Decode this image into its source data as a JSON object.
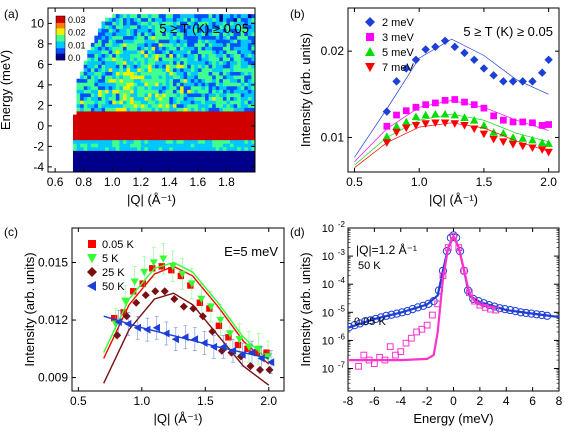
{
  "chart_data": [
    {
      "panel": "(a)",
      "type": "heatmap",
      "xlabel": "|Q| (Å⁻¹)",
      "ylabel": "Energy (meV)",
      "xlim": [
        0.55,
        2.0
      ],
      "ylim": [
        -4.5,
        11.5
      ],
      "xticks": [
        "0.6",
        "0.8",
        "1.0",
        "1.2",
        "1.4",
        "1.6",
        "1.8"
      ],
      "yticks": [
        "-4",
        "-2",
        "0",
        "2",
        "4",
        "6",
        "8",
        "10"
      ],
      "annotation": "5 ≥ T (K) ≥ 0.05",
      "colorbar": {
        "ticks": [
          "0.03",
          "0.02",
          "0.01",
          "0.0"
        ],
        "range": [
          0,
          0.035
        ],
        "colors": [
          "#00008b",
          "#0050ff",
          "#00c8ff",
          "#40ff90",
          "#f0f000",
          "#ff8000",
          "#d00000",
          "#8b0000"
        ]
      },
      "elastic_band_E": [
        -1.5,
        1.5
      ],
      "q_min_edge": [
        [
          -4,
          0.72
        ],
        [
          0,
          0.72
        ],
        [
          4,
          0.74
        ],
        [
          8,
          0.85
        ],
        [
          10,
          0.93
        ],
        [
          10.8,
          1.0
        ]
      ]
    },
    {
      "panel": "(b)",
      "type": "scatter",
      "xlabel": "|Q| (Å⁻¹)",
      "ylabel": "Intensity (arb. units)",
      "xlim": [
        0.45,
        2.08
      ],
      "ylim": [
        0.006,
        0.025
      ],
      "xticks": [
        "0.5",
        "1.0",
        "1.5",
        "2.0"
      ],
      "yticks": [
        "0.01",
        "0.02"
      ],
      "annotation": "5 ≥ T (K) ≥ 0.05",
      "x": [
        0.75,
        0.825,
        0.9,
        0.975,
        1.05,
        1.125,
        1.2,
        1.275,
        1.35,
        1.425,
        1.5,
        1.575,
        1.65,
        1.725,
        1.8,
        1.875,
        1.95,
        2.0
      ],
      "series": [
        {
          "name": "2 meV",
          "color": "#1c3fd6",
          "marker": "diamond",
          "values": [
            0.013,
            0.0165,
            0.018,
            0.019,
            0.0202,
            0.0205,
            0.0212,
            0.0205,
            0.0198,
            0.019,
            0.018,
            0.0172,
            0.0165,
            0.0165,
            0.0165,
            0.0165,
            0.0175,
            0.019
          ],
          "fit": [
            [
              0.5,
              0.0077
            ],
            [
              0.75,
              0.0133
            ],
            [
              1.0,
              0.0192
            ],
            [
              1.25,
              0.0214
            ],
            [
              1.5,
              0.0195
            ],
            [
              1.75,
              0.0167
            ],
            [
              2.0,
              0.015
            ]
          ]
        },
        {
          "name": "3 meV",
          "color": "#ff00ff",
          "marker": "square",
          "values": [
            0.0113,
            0.0126,
            0.0131,
            0.0135,
            0.0138,
            0.014,
            0.0143,
            0.0144,
            0.0141,
            0.0138,
            0.0134,
            0.0125,
            0.012,
            0.0118,
            0.0118,
            0.0117,
            0.0114,
            0.0115
          ],
          "fit": [
            [
              0.5,
              0.0072
            ],
            [
              0.75,
              0.011
            ],
            [
              1.0,
              0.0135
            ],
            [
              1.25,
              0.0143
            ],
            [
              1.5,
              0.0135
            ],
            [
              1.75,
              0.012
            ],
            [
              2.0,
              0.0108
            ]
          ]
        },
        {
          "name": "5 meV",
          "color": "#00dd00",
          "marker": "triangle-up",
          "values": [
            0.0101,
            0.0113,
            0.0118,
            0.0124,
            0.0126,
            0.0127,
            0.0127,
            0.0126,
            0.0123,
            0.012,
            0.0114,
            0.0106,
            0.0105,
            0.01,
            0.0099,
            0.0097,
            0.0094,
            0.0093
          ],
          "fit": [
            [
              0.5,
              0.0068
            ],
            [
              0.75,
              0.01
            ],
            [
              1.0,
              0.012
            ],
            [
              1.25,
              0.0127
            ],
            [
              1.5,
              0.012
            ],
            [
              1.75,
              0.0105
            ],
            [
              2.0,
              0.0095
            ]
          ]
        },
        {
          "name": "7 meV",
          "color": "#ff0000",
          "marker": "triangle-down",
          "values": [
            0.0094,
            0.0106,
            0.0111,
            0.0114,
            0.0116,
            0.0117,
            0.0117,
            0.0116,
            0.0114,
            0.011,
            0.0104,
            0.0098,
            0.0095,
            0.0092,
            0.009,
            0.0088,
            0.0086,
            0.0083
          ],
          "fit": [
            [
              0.5,
              0.0065
            ],
            [
              0.75,
              0.0094
            ],
            [
              1.0,
              0.0112
            ],
            [
              1.25,
              0.0117
            ],
            [
              1.5,
              0.0111
            ],
            [
              1.75,
              0.0096
            ],
            [
              2.0,
              0.0084
            ]
          ]
        }
      ]
    },
    {
      "panel": "(c)",
      "type": "scatter",
      "xlabel": "|Q| (Å⁻¹)",
      "ylabel": "Intensity (arb. units)",
      "xlim": [
        0.45,
        2.12
      ],
      "ylim": [
        0.0083,
        0.0168
      ],
      "xticks": [
        "0.5",
        "1.0",
        "1.5",
        "2.0"
      ],
      "yticks": [
        "0.009",
        "0.012",
        "0.015"
      ],
      "annotation": "E=5 meV",
      "x": [
        0.8,
        0.875,
        0.95,
        1.025,
        1.1,
        1.175,
        1.25,
        1.325,
        1.4,
        1.475,
        1.55,
        1.625,
        1.7,
        1.775,
        1.85,
        1.925,
        2.0
      ],
      "series": [
        {
          "name": "0.05 K",
          "color": "#ff0000",
          "marker": "square",
          "values": [
            0.0121,
            0.0124,
            0.0135,
            0.0139,
            0.0147,
            0.0148,
            0.0146,
            0.0143,
            0.0138,
            0.0129,
            0.0126,
            0.0117,
            0.0111,
            0.0107,
            0.0105,
            0.0103,
            0.0103
          ],
          "fit": [
            [
              0.7,
              0.01
            ],
            [
              0.9,
              0.0128
            ],
            [
              1.1,
              0.0144
            ],
            [
              1.25,
              0.0148
            ],
            [
              1.4,
              0.0143
            ],
            [
              1.6,
              0.0127
            ],
            [
              1.8,
              0.0109
            ],
            [
              2.0,
              0.0097
            ]
          ]
        },
        {
          "name": "5 K",
          "color": "#33ff33",
          "marker": "triangle-down",
          "values": [
            0.0118,
            0.013,
            0.014,
            0.0145,
            0.015,
            0.0152,
            0.0148,
            0.0144,
            0.0139,
            0.0131,
            0.0127,
            0.012,
            0.0113,
            0.011,
            0.0106,
            0.0105,
            0.0101
          ],
          "fit": [
            [
              0.7,
              0.0103
            ],
            [
              0.9,
              0.0131
            ],
            [
              1.1,
              0.0147
            ],
            [
              1.25,
              0.015
            ],
            [
              1.4,
              0.0145
            ],
            [
              1.6,
              0.0129
            ],
            [
              1.8,
              0.0111
            ],
            [
              2.0,
              0.0099
            ]
          ],
          "error": 0.0008
        },
        {
          "name": "25 K",
          "color": "#7a1010",
          "marker": "diamond",
          "values": [
            0.0112,
            0.0122,
            0.0129,
            0.0133,
            0.0135,
            0.0135,
            0.0131,
            0.0127,
            0.0126,
            0.0122,
            0.0114,
            0.0104,
            0.0103,
            0.0101,
            0.0096,
            0.0094,
            0.0094
          ],
          "fit": [
            [
              0.7,
              0.0087
            ],
            [
              0.9,
              0.0115
            ],
            [
              1.1,
              0.0131
            ],
            [
              1.25,
              0.0134
            ],
            [
              1.4,
              0.0128
            ],
            [
              1.6,
              0.0112
            ],
            [
              1.8,
              0.0096
            ],
            [
              2.0,
              0.0086
            ]
          ]
        },
        {
          "name": "50 K",
          "color": "#1c3fd6",
          "marker": "triangle-left",
          "values": [
            0.0119,
            0.0118,
            0.0116,
            0.0115,
            0.0116,
            0.0113,
            0.011,
            0.0111,
            0.011,
            0.0108,
            0.0106,
            0.0106,
            0.0104,
            0.0102,
            0.0103,
            0.01,
            0.0098
          ],
          "fit": [
            [
              0.7,
              0.0122
            ],
            [
              1.0,
              0.0116
            ],
            [
              1.3,
              0.0111
            ],
            [
              1.6,
              0.0106
            ],
            [
              1.8,
              0.0103
            ],
            [
              2.0,
              0.01
            ]
          ],
          "error": 0.0006
        }
      ]
    },
    {
      "panel": "(d)",
      "type": "line",
      "xlabel": "Energy (meV)",
      "ylabel": "Intensity (arb. units)",
      "xlim": [
        -8,
        8
      ],
      "ylim_log10": [
        -7.8,
        -2
      ],
      "xticks": [
        "-8",
        "-6",
        "-4",
        "-2",
        "0",
        "2",
        "4",
        "6",
        "8"
      ],
      "yticks": [
        {
          "base": "10",
          "exp": "-2"
        },
        {
          "base": "10",
          "exp": "-3"
        },
        {
          "base": "10",
          "exp": "-4"
        },
        {
          "base": "10",
          "exp": "-5"
        },
        {
          "base": "10",
          "exp": "-6"
        },
        {
          "base": "10",
          "exp": "-7"
        }
      ],
      "yscale": "log",
      "annotation": "|Q|=1.2 Å⁻¹",
      "series": [
        {
          "name": "50 K",
          "color": "#1c3fd6",
          "marker": "circle",
          "x": [
            -7.9,
            -7.5,
            -7.1,
            -6.7,
            -6.3,
            -5.9,
            -5.5,
            -5.1,
            -4.7,
            -4.3,
            -3.9,
            -3.5,
            -3.1,
            -2.7,
            -2.3,
            -1.9,
            -1.5,
            -1.1,
            -0.8,
            -0.5,
            -0.2,
            0.0,
            0.2,
            0.5,
            0.8,
            1.1,
            1.5,
            1.9,
            2.3,
            2.7,
            3.1,
            3.5,
            3.9,
            4.3,
            4.7,
            5.1,
            5.5,
            5.9,
            6.3,
            6.7,
            7.1
          ],
          "values": [
            3e-06,
            3.5e-06,
            4e-06,
            4.8e-06,
            5.2e-06,
            5.8e-06,
            6.6e-06,
            7.5e-06,
            8.2e-06,
            9e-06,
            1e-05,
            1.1e-05,
            1.3e-05,
            1.5e-05,
            1.7e-05,
            2e-05,
            2.5e-05,
            6e-05,
            0.0003,
            0.0015,
            0.0045,
            0.0055,
            0.0045,
            0.0015,
            0.0003,
            6e-05,
            3e-05,
            2.5e-05,
            2.1e-05,
            1.8e-05,
            1.6e-05,
            1.4e-05,
            1.3e-05,
            1.2e-05,
            1.1e-05,
            1e-05,
            9.5e-06,
            9e-06,
            8.5e-06,
            8e-06,
            7.5e-06
          ],
          "fit": [
            [
              -8.0,
              2.8e-06
            ],
            [
              -6.0,
              5.8e-06
            ],
            [
              -4.0,
              9.8e-06
            ],
            [
              -2.0,
              1.9e-05
            ],
            [
              -1.2,
              4e-05
            ],
            [
              -0.8,
              0.0003
            ],
            [
              -0.4,
              0.002
            ],
            [
              0.0,
              0.005
            ],
            [
              0.4,
              0.002
            ],
            [
              0.8,
              0.0003
            ],
            [
              1.2,
              4e-05
            ],
            [
              2.0,
              2.3e-05
            ],
            [
              4.0,
              1.2e-05
            ],
            [
              6.0,
              9e-06
            ],
            [
              8.0,
              6.8e-06
            ]
          ]
        },
        {
          "name": "0.05 K",
          "color": "#ff33cc",
          "marker": "square",
          "x": [
            -7.2,
            -6.8,
            -6.4,
            -6.0,
            -5.6,
            -5.2,
            -4.8,
            -4.4,
            -4.0,
            -3.6,
            -3.2,
            -2.8,
            -2.4,
            -2.0,
            -1.6,
            -1.2,
            -0.8,
            -0.4,
            0.0,
            0.4,
            0.8,
            1.2,
            1.6,
            2.0,
            2.4,
            2.8,
            3.2
          ],
          "values": [
            1.2e-07,
            3e-07,
            2e-07,
            1.5e-07,
            2.5e-07,
            2e-07,
            6e-07,
            3e-07,
            4e-07,
            8e-07,
            1.2e-06,
            2e-06,
            2.5e-06,
            3.5e-06,
            8e-06,
            2e-05,
            0.0002,
            0.002,
            0.005,
            0.002,
            0.0003,
            5e-05,
            2.5e-05,
            1.8e-05,
            1.5e-05,
            1.3e-05,
            1.2e-05
          ],
          "fit": [
            [
              -8.0,
              2e-07
            ],
            [
              -4.0,
              2e-07
            ],
            [
              -2.0,
              2.2e-07
            ],
            [
              -1.5,
              3e-07
            ],
            [
              -1.2,
              2e-06
            ],
            [
              -0.8,
              0.00015
            ],
            [
              -0.4,
              0.002
            ],
            [
              0.0,
              0.005
            ],
            [
              0.4,
              0.002
            ],
            [
              0.8,
              0.0003
            ],
            [
              1.2,
              5e-05
            ],
            [
              1.6,
              2.5e-05
            ],
            [
              2.0,
              1.9e-05
            ],
            [
              3.0,
              1.5e-05
            ],
            [
              3.2,
              1.4e-05
            ]
          ]
        }
      ],
      "labels": [
        "50 K",
        "0.05 K"
      ]
    }
  ],
  "panel_labels": [
    "(a)",
    "(b)",
    "(c)",
    "(d)"
  ]
}
